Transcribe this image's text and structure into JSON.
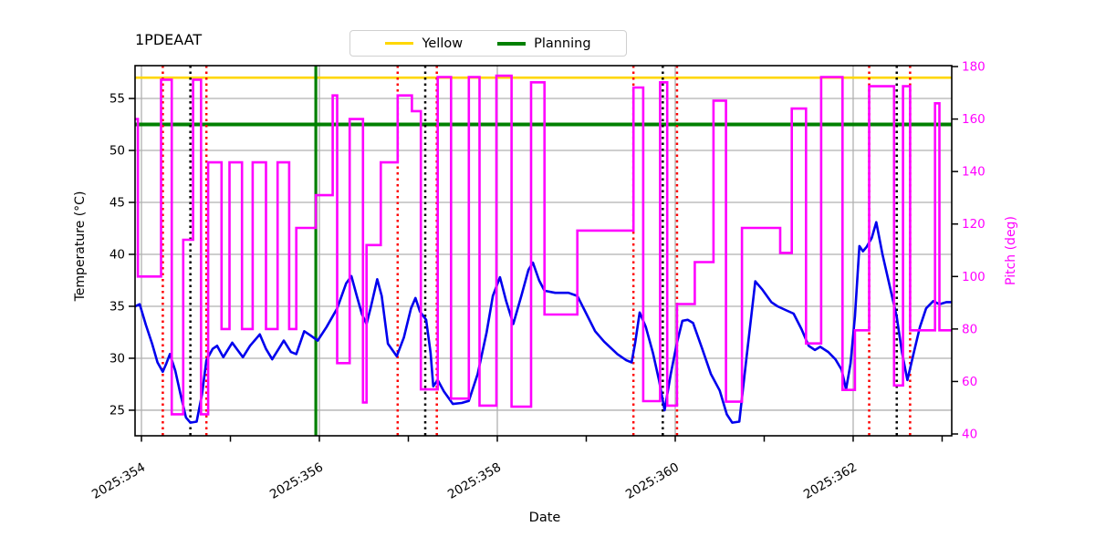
{
  "title": "1PDEAAT",
  "legend": [
    {
      "label": "Yellow",
      "color": "#ffd700",
      "line_width": 3
    },
    {
      "label": "Planning",
      "color": "#008000",
      "line_width": 4
    }
  ],
  "chart_data": {
    "type": "line",
    "title": "1PDEAAT",
    "xlabel": "Date",
    "ylabel": "Temperature (°C)",
    "y2label": "Pitch (deg)",
    "grid": true,
    "legend_position": "top-center",
    "xlim": [
      353.928,
      363.108
    ],
    "ylim": [
      22.54,
      58.16
    ],
    "y2lim": [
      39.31,
      180.35
    ],
    "x_ticks": [
      {
        "pos": 354,
        "label": "2025:354"
      },
      {
        "pos": 356,
        "label": "2025:356"
      },
      {
        "pos": 358,
        "label": "2025:358"
      },
      {
        "pos": 360,
        "label": "2025:360"
      },
      {
        "pos": 362,
        "label": "2025:362"
      }
    ],
    "x_minor_ticks": [
      355,
      357,
      359,
      361,
      363
    ],
    "y_ticks": [
      25,
      30,
      35,
      40,
      45,
      50,
      55
    ],
    "y2_ticks": [
      40,
      60,
      80,
      100,
      120,
      140,
      160,
      180
    ],
    "colors": {
      "temperature": "#0000ee",
      "pitch": "#ff00ff",
      "grid": "#b0b0b0",
      "spine": "#000000",
      "red_limit_line": "#ff0000",
      "black_limit_line": "#000000",
      "yellow_limit": "#ffd700",
      "planning_limit": "#008000"
    },
    "h_lines": [
      {
        "name": "yellow-limit",
        "y": 57.0,
        "axis": "y1",
        "color": "#ffd700",
        "width": 2.6,
        "style": "solid"
      },
      {
        "name": "planning-limit",
        "y": 52.5,
        "axis": "y1",
        "color": "#008000",
        "width": 4,
        "style": "solid"
      }
    ],
    "v_lines": [
      {
        "x": 355.96,
        "color": "#008000",
        "style": "solid",
        "width": 3.2
      },
      {
        "x": 354.24,
        "color": "#ff0000",
        "style": "dotted",
        "width": 2.5
      },
      {
        "x": 354.73,
        "color": "#ff0000",
        "style": "dotted",
        "width": 2.5
      },
      {
        "x": 356.88,
        "color": "#ff0000",
        "style": "dotted",
        "width": 2.5
      },
      {
        "x": 357.32,
        "color": "#ff0000",
        "style": "dotted",
        "width": 2.5
      },
      {
        "x": 359.53,
        "color": "#ff0000",
        "style": "dotted",
        "width": 2.5
      },
      {
        "x": 360.02,
        "color": "#ff0000",
        "style": "dotted",
        "width": 2.5
      },
      {
        "x": 362.18,
        "color": "#ff0000",
        "style": "dotted",
        "width": 2.5
      },
      {
        "x": 362.64,
        "color": "#ff0000",
        "style": "dotted",
        "width": 2.5
      },
      {
        "x": 354.55,
        "color": "#000000",
        "style": "dotted",
        "width": 2.5
      },
      {
        "x": 357.19,
        "color": "#000000",
        "style": "dotted",
        "width": 2.5
      },
      {
        "x": 359.86,
        "color": "#000000",
        "style": "dotted",
        "width": 2.5
      },
      {
        "x": 362.49,
        "color": "#000000",
        "style": "dotted",
        "width": 2.5
      }
    ],
    "series": [
      {
        "name": "Temperature",
        "axis": "y1",
        "draw": "line",
        "color": "#0000ee",
        "width": 2.6,
        "points": [
          [
            353.93,
            35.0
          ],
          [
            353.98,
            35.2
          ],
          [
            354.05,
            33.2
          ],
          [
            354.12,
            31.4
          ],
          [
            354.18,
            29.6
          ],
          [
            354.24,
            28.7
          ],
          [
            354.28,
            29.5
          ],
          [
            354.32,
            30.4
          ],
          [
            354.38,
            28.8
          ],
          [
            354.44,
            26.5
          ],
          [
            354.5,
            24.3
          ],
          [
            354.55,
            23.8
          ],
          [
            354.62,
            23.9
          ],
          [
            354.68,
            26.5
          ],
          [
            354.73,
            29.8
          ],
          [
            354.8,
            30.9
          ],
          [
            354.85,
            31.2
          ],
          [
            354.92,
            30.1
          ],
          [
            355.02,
            31.5
          ],
          [
            355.08,
            30.8
          ],
          [
            355.14,
            30.1
          ],
          [
            355.22,
            31.2
          ],
          [
            355.33,
            32.3
          ],
          [
            355.4,
            30.9
          ],
          [
            355.47,
            29.9
          ],
          [
            355.55,
            31.0
          ],
          [
            355.6,
            31.7
          ],
          [
            355.68,
            30.6
          ],
          [
            355.74,
            30.4
          ],
          [
            355.83,
            32.6
          ],
          [
            355.9,
            32.2
          ],
          [
            355.98,
            31.7
          ],
          [
            356.08,
            33.0
          ],
          [
            356.2,
            34.8
          ],
          [
            356.3,
            37.2
          ],
          [
            356.36,
            37.9
          ],
          [
            356.42,
            36.0
          ],
          [
            356.48,
            34.2
          ],
          [
            356.53,
            33.3
          ],
          [
            356.58,
            35.0
          ],
          [
            356.65,
            37.6
          ],
          [
            356.7,
            36.0
          ],
          [
            356.77,
            31.4
          ],
          [
            356.87,
            30.2
          ],
          [
            356.95,
            32.0
          ],
          [
            357.03,
            34.8
          ],
          [
            357.08,
            35.8
          ],
          [
            357.13,
            34.5
          ],
          [
            357.2,
            33.7
          ],
          [
            357.25,
            30.5
          ],
          [
            357.28,
            27.3
          ],
          [
            357.33,
            27.9
          ],
          [
            357.4,
            26.8
          ],
          [
            357.5,
            25.6
          ],
          [
            357.6,
            25.7
          ],
          [
            357.68,
            25.9
          ],
          [
            357.78,
            28.5
          ],
          [
            357.88,
            32.5
          ],
          [
            357.95,
            36.0
          ],
          [
            358.03,
            37.8
          ],
          [
            358.1,
            35.5
          ],
          [
            358.18,
            33.3
          ],
          [
            358.27,
            36.0
          ],
          [
            358.35,
            38.5
          ],
          [
            358.4,
            39.2
          ],
          [
            358.47,
            37.5
          ],
          [
            358.53,
            36.5
          ],
          [
            358.65,
            36.3
          ],
          [
            358.8,
            36.3
          ],
          [
            358.9,
            36.0
          ],
          [
            359.0,
            34.3
          ],
          [
            359.1,
            32.6
          ],
          [
            359.2,
            31.6
          ],
          [
            359.35,
            30.4
          ],
          [
            359.45,
            29.8
          ],
          [
            359.51,
            29.6
          ],
          [
            359.55,
            31.5
          ],
          [
            359.6,
            34.4
          ],
          [
            359.67,
            33.0
          ],
          [
            359.75,
            30.5
          ],
          [
            359.82,
            27.8
          ],
          [
            359.88,
            25.0
          ],
          [
            359.95,
            28.5
          ],
          [
            360.02,
            31.5
          ],
          [
            360.08,
            33.6
          ],
          [
            360.14,
            33.7
          ],
          [
            360.2,
            33.4
          ],
          [
            360.3,
            31.0
          ],
          [
            360.4,
            28.5
          ],
          [
            360.5,
            26.9
          ],
          [
            360.58,
            24.6
          ],
          [
            360.64,
            23.8
          ],
          [
            360.72,
            23.9
          ],
          [
            360.8,
            30.0
          ],
          [
            360.9,
            37.4
          ],
          [
            360.98,
            36.6
          ],
          [
            361.08,
            35.4
          ],
          [
            361.15,
            35.0
          ],
          [
            361.25,
            34.6
          ],
          [
            361.33,
            34.3
          ],
          [
            361.42,
            32.8
          ],
          [
            361.5,
            31.2
          ],
          [
            361.57,
            30.8
          ],
          [
            361.63,
            31.1
          ],
          [
            361.72,
            30.6
          ],
          [
            361.8,
            29.9
          ],
          [
            361.87,
            28.9
          ],
          [
            361.92,
            27.0
          ],
          [
            361.97,
            29.5
          ],
          [
            362.02,
            34.0
          ],
          [
            362.07,
            40.8
          ],
          [
            362.11,
            40.3
          ],
          [
            362.15,
            40.7
          ],
          [
            362.21,
            41.6
          ],
          [
            362.26,
            43.1
          ],
          [
            362.33,
            40.0
          ],
          [
            362.41,
            37.0
          ],
          [
            362.49,
            34.0
          ],
          [
            362.55,
            30.5
          ],
          [
            362.61,
            27.9
          ],
          [
            362.68,
            30.5
          ],
          [
            362.75,
            33.0
          ],
          [
            362.82,
            34.8
          ],
          [
            362.9,
            35.5
          ],
          [
            362.97,
            35.2
          ],
          [
            363.05,
            35.4
          ],
          [
            363.11,
            35.4
          ]
        ]
      },
      {
        "name": "Pitch",
        "axis": "y2",
        "draw": "step",
        "color": "#ff00ff",
        "width": 2.6,
        "points": [
          [
            353.93,
            160
          ],
          [
            353.96,
            100
          ],
          [
            354.22,
            175
          ],
          [
            354.34,
            47.5
          ],
          [
            354.47,
            114
          ],
          [
            354.58,
            175
          ],
          [
            354.67,
            47.5
          ],
          [
            354.75,
            143.5
          ],
          [
            354.9,
            80
          ],
          [
            354.99,
            143.5
          ],
          [
            355.13,
            80
          ],
          [
            355.25,
            143.5
          ],
          [
            355.4,
            80
          ],
          [
            355.53,
            143.5
          ],
          [
            355.66,
            80
          ],
          [
            355.74,
            118.5
          ],
          [
            355.96,
            131
          ],
          [
            356.15,
            169
          ],
          [
            356.2,
            67
          ],
          [
            356.34,
            160
          ],
          [
            356.49,
            52
          ],
          [
            356.53,
            112
          ],
          [
            356.69,
            143.5
          ],
          [
            356.88,
            169
          ],
          [
            357.04,
            163
          ],
          [
            357.14,
            57
          ],
          [
            357.33,
            176
          ],
          [
            357.48,
            53.5
          ],
          [
            357.68,
            176
          ],
          [
            357.8,
            50.8
          ],
          [
            357.99,
            176.5
          ],
          [
            358.16,
            50.4
          ],
          [
            358.38,
            174
          ],
          [
            358.53,
            85.5
          ],
          [
            358.9,
            117.5
          ],
          [
            359.53,
            172
          ],
          [
            359.64,
            52.5
          ],
          [
            359.83,
            174
          ],
          [
            359.91,
            50.8
          ],
          [
            360.02,
            89.5
          ],
          [
            360.22,
            105.5
          ],
          [
            360.43,
            167
          ],
          [
            360.57,
            52.3
          ],
          [
            360.75,
            118.5
          ],
          [
            361.18,
            109
          ],
          [
            361.31,
            164
          ],
          [
            361.47,
            74.5
          ],
          [
            361.64,
            176
          ],
          [
            361.88,
            56.8
          ],
          [
            362.02,
            79.5
          ],
          [
            362.18,
            172.5
          ],
          [
            362.46,
            58.5
          ],
          [
            362.56,
            172.5
          ],
          [
            362.64,
            79.5
          ],
          [
            362.92,
            166
          ],
          [
            362.97,
            79.5
          ],
          [
            363.11,
            79.5
          ]
        ]
      }
    ]
  }
}
